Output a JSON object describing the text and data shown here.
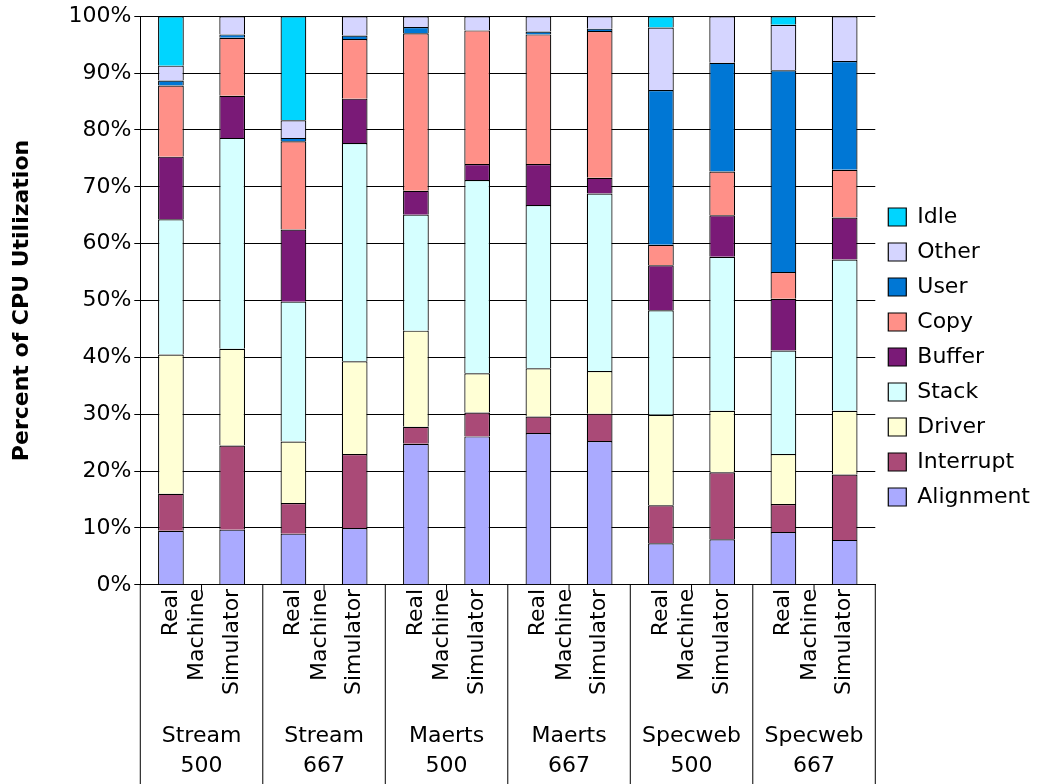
{
  "chart_data": {
    "type": "bar",
    "stacked": true,
    "ylabel": "Percent of CPU Utilization",
    "categories": [
      "Real Machine",
      "Simulator",
      "Real Machine",
      "Simulator",
      "Real Machine",
      "Simulator",
      "Real Machine",
      "Simulator",
      "Real Machine",
      "Simulator",
      "Real Machine",
      "Simulator"
    ],
    "annotations": [
      "Stream 500",
      "Stream 667",
      "Maerts 500",
      "Maerts 667",
      "Specweb 500",
      "Specweb 667"
    ],
    "series": [
      {
        "name": "Alignment",
        "color": "#aaaaff",
        "values": [
          9.5,
          9.7,
          9,
          10,
          24.8,
          26.1,
          26.7,
          25.3,
          7.3,
          8,
          9.3,
          7.9
        ]
      },
      {
        "name": "Interrupt",
        "color": "#aa4a77",
        "values": [
          6.5,
          14.8,
          5.4,
          13,
          3,
          4.2,
          2.9,
          4.8,
          6.7,
          11.8,
          4.9,
          11.5
        ]
      },
      {
        "name": "Driver",
        "color": "#ffffd5",
        "values": [
          24.5,
          17,
          10.8,
          16.3,
          16.9,
          6.9,
          8.5,
          7.5,
          15.9,
          10.8,
          8.8,
          11.2
        ]
      },
      {
        "name": "Stack",
        "color": "#d5ffff",
        "values": [
          23.8,
          37.1,
          24.6,
          38.4,
          20.4,
          34,
          28.7,
          31.2,
          18.4,
          27.1,
          18.2,
          26.6
        ]
      },
      {
        "name": "Buffer",
        "color": "#7a1a77",
        "values": [
          11,
          7.4,
          12.7,
          7.8,
          4.2,
          2.8,
          7.2,
          2.8,
          7.9,
          7.3,
          9.1,
          7.4
        ]
      },
      {
        "name": "Copy",
        "color": "#ff9088",
        "values": [
          12.5,
          10.2,
          15.5,
          10.5,
          27.7,
          23.5,
          22.8,
          25.8,
          3.6,
          7.7,
          4.7,
          8.4
        ]
      },
      {
        "name": "User",
        "color": "#0077d5",
        "values": [
          0.9,
          0.6,
          0.6,
          0.6,
          1.1,
          null,
          0.5,
          0.4,
          27.2,
          19.1,
          35.5,
          19.1
        ]
      },
      {
        "name": "Other",
        "color": "#d5d5ff",
        "values": [
          2.6,
          3.2,
          3.1,
          3.4,
          1.9,
          2.5,
          2.7,
          2.2,
          11,
          8.2,
          8,
          7.9
        ]
      },
      {
        "name": "Idle",
        "color": "#00d5ff",
        "values": [
          8.7,
          0,
          18.3,
          0,
          0,
          0,
          0,
          0,
          2,
          0,
          1.5,
          0
        ]
      }
    ],
    "ylim": [
      0,
      100
    ],
    "yticks": [
      {
        "value": 0,
        "label": "0%"
      },
      {
        "value": 10,
        "label": "10%"
      },
      {
        "value": 20,
        "label": "20%"
      },
      {
        "value": 30,
        "label": "30%"
      },
      {
        "value": 40,
        "label": "40%"
      },
      {
        "value": 50,
        "label": "50%"
      },
      {
        "value": 60,
        "label": "60%"
      },
      {
        "value": 70,
        "label": "70%"
      },
      {
        "value": 80,
        "label": "80%"
      },
      {
        "value": 90,
        "label": "90%"
      },
      {
        "value": 100,
        "label": "100%"
      }
    ],
    "grid": "y",
    "legend": "right"
  }
}
